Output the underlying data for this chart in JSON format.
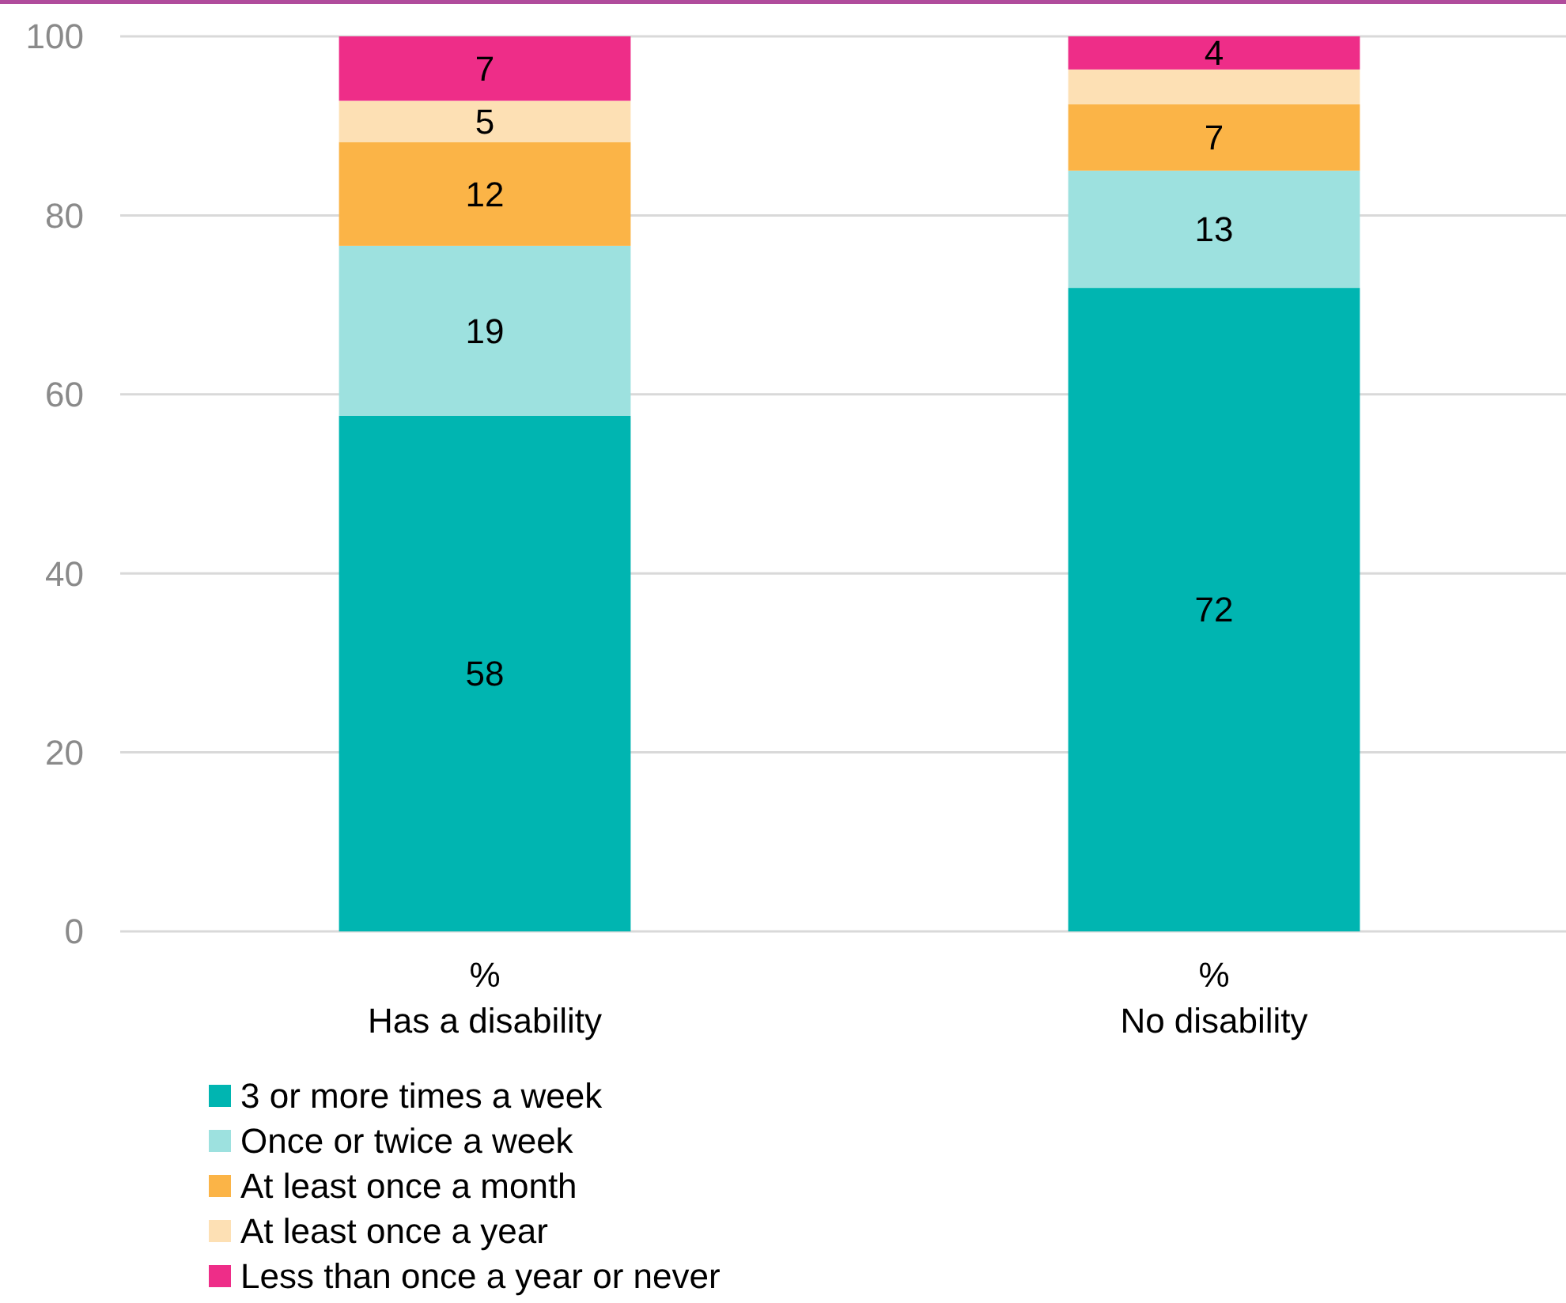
{
  "chart_data": {
    "type": "bar",
    "stacked": true,
    "categories": [
      "%\nHas a disability",
      "%\nNo disability"
    ],
    "series": [
      {
        "name": "3 or more times a week",
        "color": "#00b5b1",
        "values": [
          57.6,
          71.9
        ],
        "value_labels": [
          "58",
          "72"
        ]
      },
      {
        "name": "Once or twice a week",
        "color": "#9de1df",
        "values": [
          19.0,
          13.1
        ],
        "value_labels": [
          "19",
          "13"
        ]
      },
      {
        "name": "At least once a month",
        "color": "#fbb447",
        "values": [
          11.6,
          7.4
        ],
        "value_labels": [
          "12",
          "7"
        ]
      },
      {
        "name": "At least once a year",
        "color": "#fde0b4",
        "values": [
          4.6,
          3.9
        ],
        "value_labels": [
          "5",
          null
        ]
      },
      {
        "name": "Less than once a year or never",
        "color": "#ee2d88",
        "values": [
          7.2,
          3.7
        ],
        "value_labels": [
          "7",
          "4"
        ]
      }
    ],
    "ylim": [
      0,
      100
    ],
    "yticks": [
      0,
      20,
      40,
      60,
      80,
      100
    ],
    "grid": "y",
    "legend": "bottom"
  }
}
